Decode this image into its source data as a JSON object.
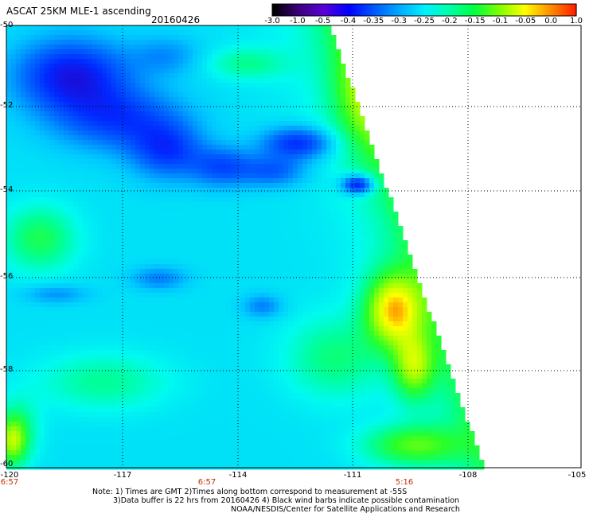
{
  "header": {
    "title": "ASCAT 25KM MLE-1 ascending",
    "date": "20160426"
  },
  "colorbar": {
    "labels": [
      "-3.0",
      "-1.0",
      "-0.5",
      "-0.4",
      "-0.35",
      "-0.3",
      "-0.25",
      "-0.2",
      "-0.15",
      "-0.1",
      "-0.05",
      "0.0",
      "1.0"
    ],
    "colors": [
      "#000000",
      "#3a007a",
      "#5a00d8",
      "#0000ff",
      "#0058ff",
      "#00a8ff",
      "#00f0ff",
      "#00ffa8",
      "#00ff40",
      "#80ff00",
      "#ffff00",
      "#ff9000",
      "#ff2000"
    ]
  },
  "axes": {
    "y_labels": [
      "-50",
      "-52",
      "-54",
      "-56",
      "-58",
      "-60"
    ],
    "x_labels": [
      "-120",
      "-117",
      "-114",
      "-111",
      "-108",
      "-105"
    ],
    "time_labels": [
      "6:57",
      "6:57",
      "5:16"
    ]
  },
  "notes": {
    "line1": "Note: 1) Times are GMT 2)Times along bottom correspond to measurement at -55S",
    "line2": "3)Data buffer is 22 hrs from 20160426 4) Black wind barbs indicate possible contamination",
    "line3": "NOAA/NESDIS/Center for Satellite Applications and Research"
  }
}
